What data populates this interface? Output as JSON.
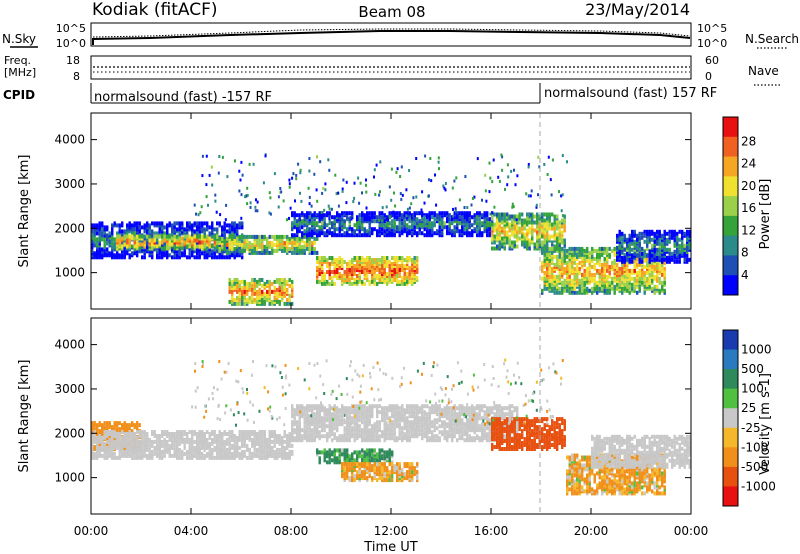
{
  "header": {
    "station": "Kodiak (fitACF)",
    "beam": "Beam 08",
    "date": "23/May/2014"
  },
  "noise_panel": {
    "left_label": "N.Sky",
    "left_ticks": [
      "10^5",
      "10^0"
    ],
    "right_label": "N.Search",
    "right_ticks": [
      "10^5",
      "10^0"
    ]
  },
  "freq_panel": {
    "left_label_1": "Freq.",
    "left_label_2": "[MHz]",
    "left_ticks": [
      "18",
      "8"
    ],
    "right_label": "Nave",
    "right_ticks": [
      "60",
      "0"
    ]
  },
  "cpid_panel": {
    "label": "CPID",
    "segments": [
      "normalsound (fast) -157 RF",
      "normalsound (fast) 157 RF"
    ]
  },
  "range_time": {
    "ylabel": "Slant Range [km]",
    "yticks": [
      "4000",
      "3000",
      "2000",
      "1000"
    ],
    "xticks": [
      "00:00",
      "04:00",
      "08:00",
      "12:00",
      "16:00",
      "20:00",
      "00:00"
    ],
    "xlabel": "Time UT"
  },
  "power_colorbar": {
    "label": "Power [dB]",
    "ticks": [
      "28",
      "24",
      "20",
      "16",
      "12",
      "8",
      "4"
    ],
    "colors": [
      "#0000ff",
      "#1e4fb4",
      "#2b8a8a",
      "#33a33a",
      "#9ad04a",
      "#f0e030",
      "#f5a623",
      "#f06020",
      "#e81010"
    ]
  },
  "velocity_colorbar": {
    "label": "Velocity [m s-1]",
    "ticks": [
      "1000",
      "500",
      "100",
      "25",
      "-25",
      "-100",
      "-500",
      "-1000"
    ],
    "colors": [
      "#1a3ab0",
      "#2a7ac0",
      "#2e8a5a",
      "#50c040",
      "#c8c8c8",
      "#f5b82a",
      "#f0901a",
      "#e85010",
      "#e81010"
    ]
  },
  "chart_data": [
    {
      "type": "heatmap",
      "title": "Power",
      "xlabel": "Time UT",
      "ylabel": "Slant Range [km]",
      "x_range_hours": [
        0,
        24
      ],
      "y_range_km": [
        180,
        4600
      ],
      "z_label": "Power [dB]",
      "z_range": [
        0,
        30
      ],
      "echo_regions": [
        {
          "t_start": 0,
          "t_end": 6,
          "range_low_km": 1300,
          "range_high_km": 2100,
          "power_db": 10
        },
        {
          "t_start": 1,
          "t_end": 5,
          "range_low_km": 1500,
          "range_high_km": 1800,
          "power_db": 24
        },
        {
          "t_start": 5,
          "t_end": 9,
          "range_low_km": 1400,
          "range_high_km": 1800,
          "power_db": 20
        },
        {
          "t_start": 5.5,
          "t_end": 8,
          "range_low_km": 250,
          "range_high_km": 800,
          "power_db": 24
        },
        {
          "t_start": 9,
          "t_end": 13,
          "range_low_km": 700,
          "range_high_km": 1300,
          "power_db": 26
        },
        {
          "t_start": 8,
          "t_end": 16,
          "range_low_km": 1800,
          "range_high_km": 2300,
          "power_db": 10
        },
        {
          "t_start": 16,
          "t_end": 19,
          "range_low_km": 1500,
          "range_high_km": 2300,
          "power_db": 20
        },
        {
          "t_start": 18,
          "t_end": 23,
          "range_low_km": 500,
          "range_high_km": 1500,
          "power_db": 22
        },
        {
          "t_start": 21,
          "t_end": 24,
          "range_low_km": 1200,
          "range_high_km": 1900,
          "power_db": 10
        }
      ]
    },
    {
      "type": "heatmap",
      "title": "Velocity",
      "xlabel": "Time UT",
      "ylabel": "Slant Range [km]",
      "x_range_hours": [
        0,
        24
      ],
      "y_range_km": [
        180,
        4600
      ],
      "z_label": "Velocity [m s-1]",
      "z_range": [
        -1000,
        1000
      ],
      "echo_regions": [
        {
          "t_start": 0,
          "t_end": 2,
          "range_low_km": 1600,
          "range_high_km": 2200,
          "velocity": -300
        },
        {
          "t_start": 0,
          "t_end": 8,
          "range_low_km": 1400,
          "range_high_km": 2000,
          "velocity": 0
        },
        {
          "t_start": 8,
          "t_end": 17,
          "range_low_km": 1800,
          "range_high_km": 2600,
          "velocity": 0
        },
        {
          "t_start": 9,
          "t_end": 12,
          "range_low_km": 1300,
          "range_high_km": 1600,
          "velocity": 200
        },
        {
          "t_start": 10,
          "t_end": 13,
          "range_low_km": 900,
          "range_high_km": 1300,
          "velocity": -150
        },
        {
          "t_start": 16,
          "t_end": 19,
          "range_low_km": 1600,
          "range_high_km": 2300,
          "velocity": -700
        },
        {
          "t_start": 19,
          "t_end": 23,
          "range_low_km": 600,
          "range_high_km": 1500,
          "velocity": -150
        },
        {
          "t_start": 20,
          "t_end": 24,
          "range_low_km": 1200,
          "range_high_km": 1900,
          "velocity": 0
        }
      ]
    }
  ]
}
